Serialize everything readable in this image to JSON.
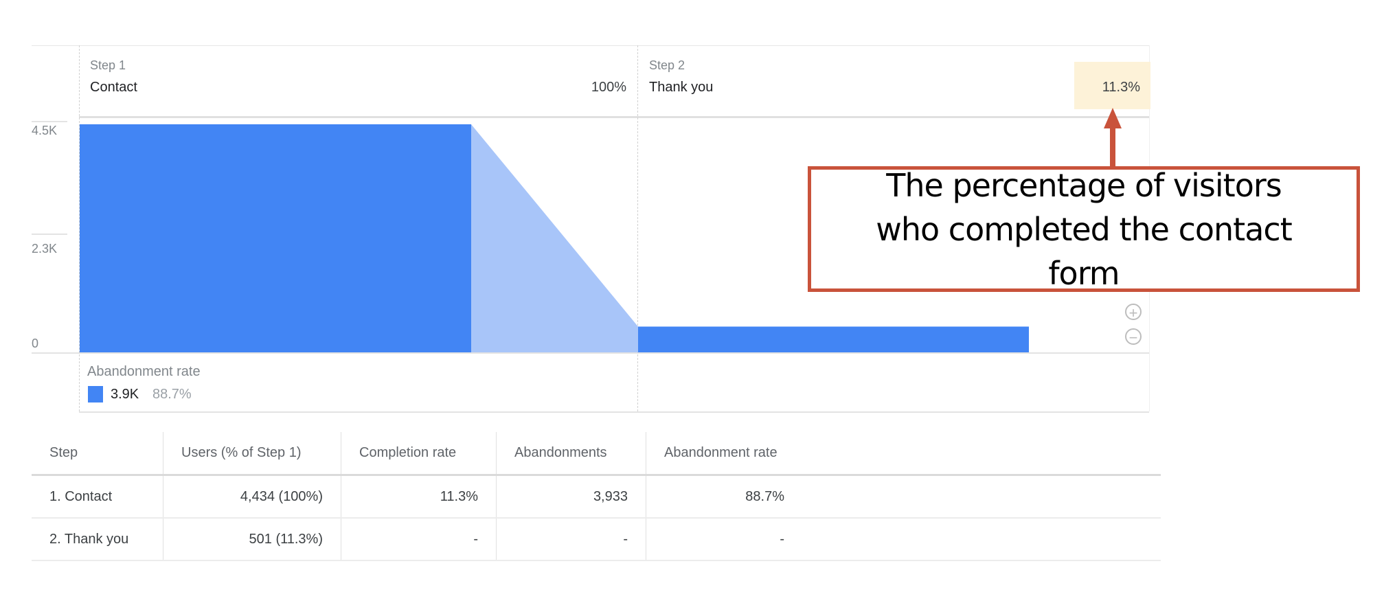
{
  "funnel": {
    "steps": [
      {
        "label": "Step 1",
        "name": "Contact",
        "percent": "100%"
      },
      {
        "label": "Step 2",
        "name": "Thank you",
        "percent": "11.3%"
      }
    ],
    "y_ticks": [
      "4.5K",
      "2.3K",
      "0"
    ],
    "abandonment": {
      "title": "Abandonment rate",
      "value": "3.9K",
      "percent": "88.7%"
    },
    "colors": {
      "bar": "#4285f4",
      "dropoff": "#a8c5f9",
      "highlight": "#fdf2d8",
      "callout": "#c9533b"
    }
  },
  "chart_data": {
    "type": "bar",
    "categories": [
      "Contact",
      "Thank you"
    ],
    "values": [
      4434,
      501
    ],
    "ylim": [
      0,
      4500
    ],
    "y_ticks": [
      "4.5K",
      "2.3K",
      "0"
    ]
  },
  "callout": {
    "text": "The percentage of visitors who completed the contact form"
  },
  "table": {
    "headers": [
      "Step",
      "Users (% of Step 1)",
      "Completion rate",
      "Abandonments",
      "Abandonment rate"
    ],
    "rows": [
      [
        "1. Contact",
        "4,434 (100%)",
        "11.3%",
        "3,933",
        "88.7%"
      ],
      [
        "2. Thank you",
        "501 (11.3%)",
        "-",
        "-",
        "-"
      ]
    ]
  }
}
